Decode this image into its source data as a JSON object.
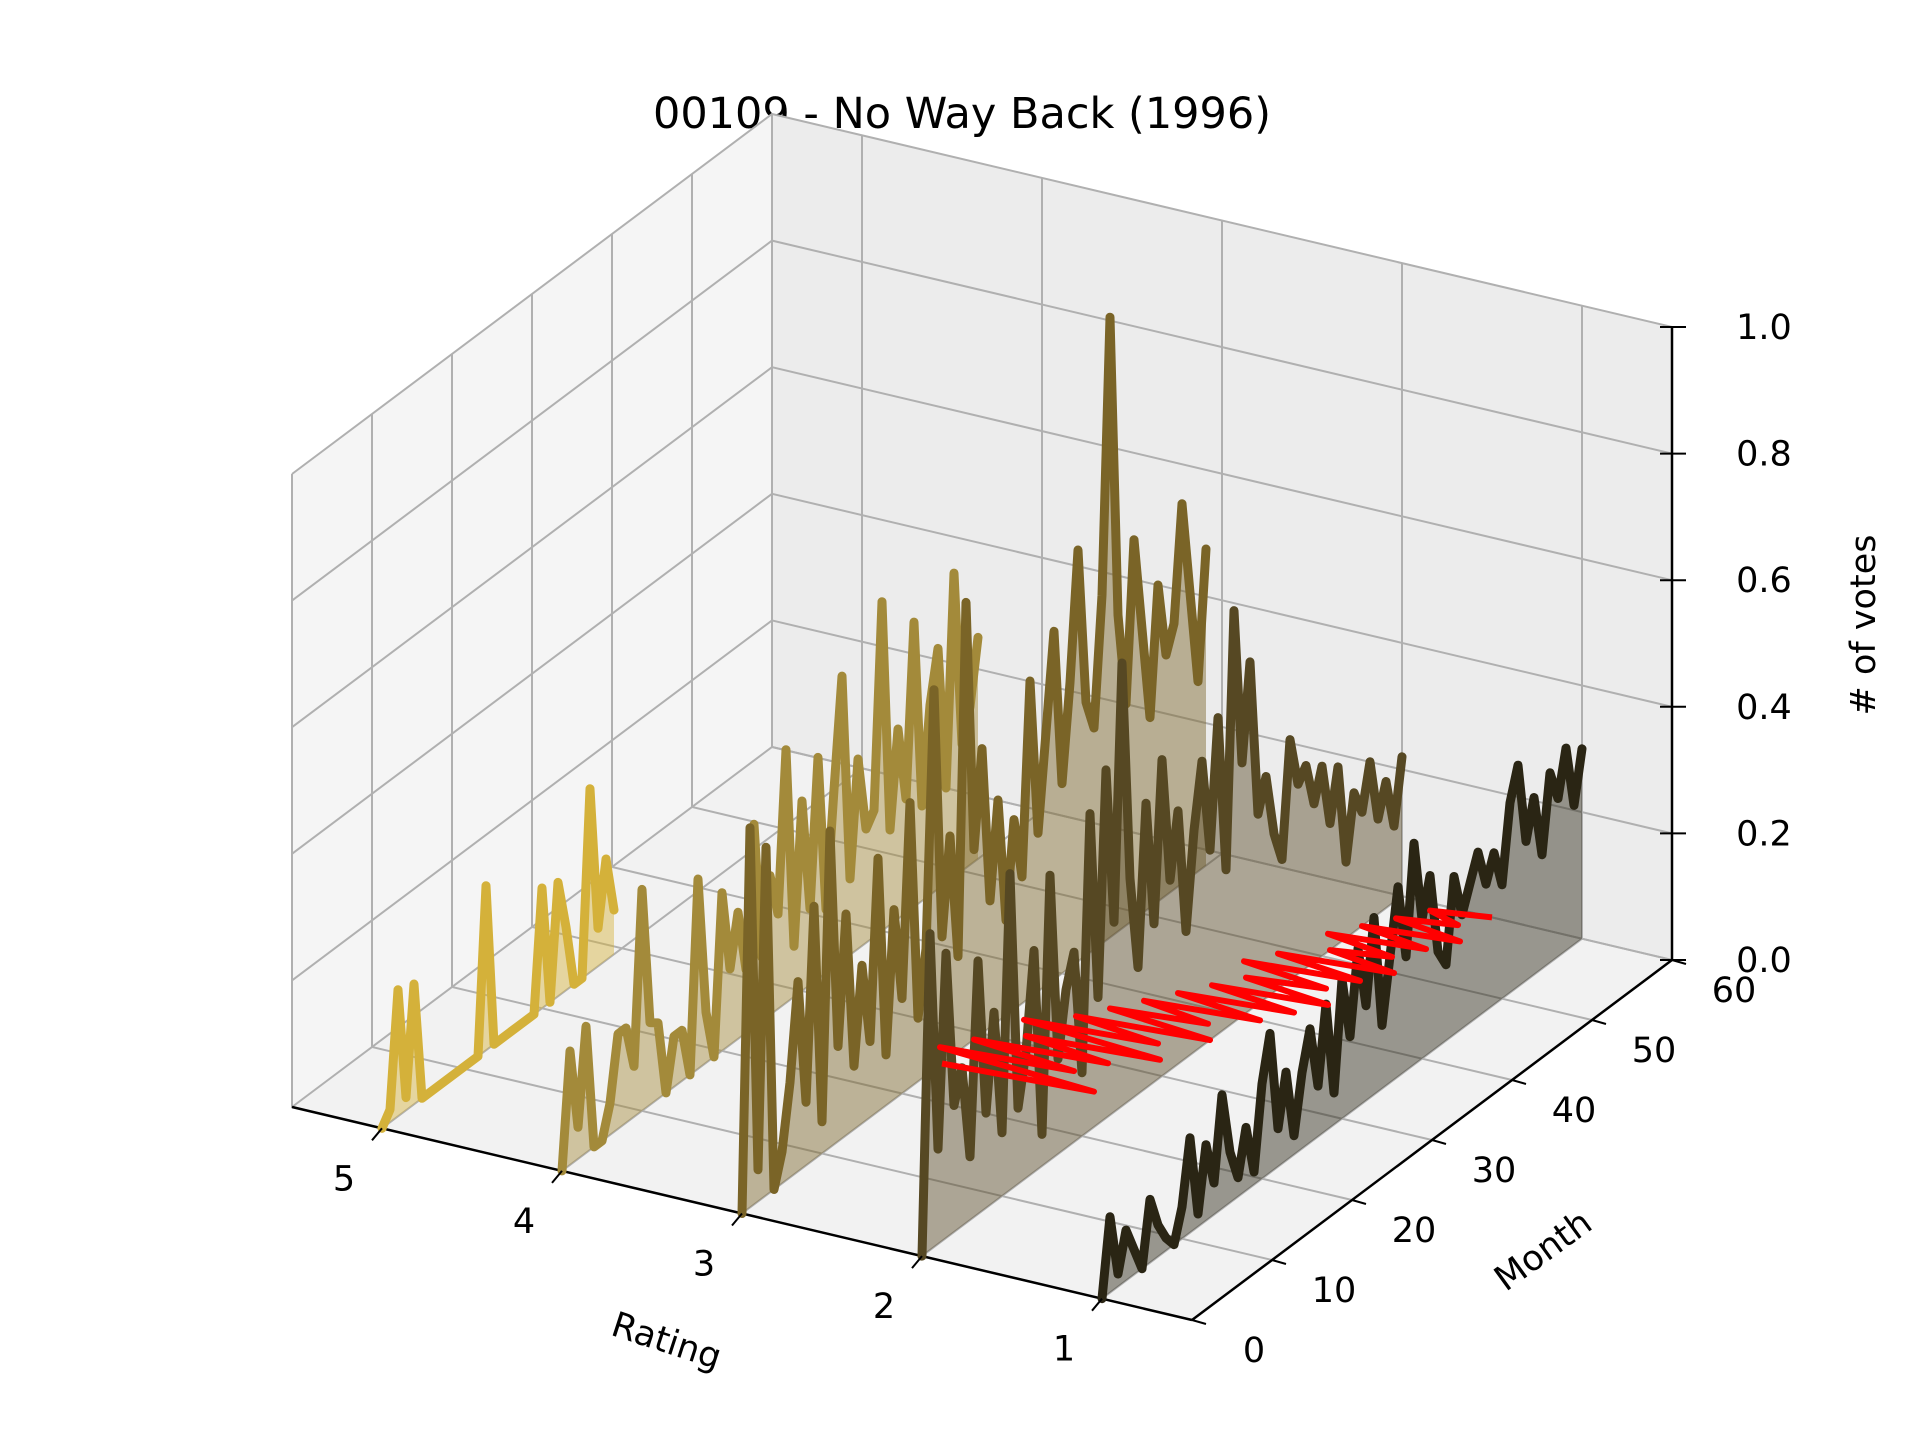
{
  "chart_data": {
    "type": "line",
    "projection": "3d",
    "title": "00109 - No Way Back (1996)",
    "xlabel": "Rating",
    "ylabel": "Month",
    "zlabel": "# of votes",
    "xlim": [
      0.5,
      5.5
    ],
    "ylim": [
      0,
      60
    ],
    "zlim": [
      0,
      1
    ],
    "x_ticks": [
      "5",
      "4",
      "3",
      "2",
      "1"
    ],
    "y_ticks": [
      "0",
      "10",
      "20",
      "30",
      "40",
      "50",
      "60"
    ],
    "z_ticks": [
      "0.0",
      "0.2",
      "0.4",
      "0.6",
      "0.8",
      "1.0"
    ],
    "grid": true,
    "legend": "none",
    "series": [
      {
        "rating": 5,
        "color": "#d4b13a",
        "month_start": 0,
        "month_end": 29,
        "values": [
          0.0,
          0.02,
          0.2,
          0.02,
          0.19,
          0.0,
          0.0,
          0.0,
          0.0,
          0.0,
          0.0,
          0.0,
          0.0,
          0.26,
          0.0,
          0.0,
          0.0,
          0.0,
          0.0,
          0.0,
          0.19,
          0.0,
          0.18,
          0.1,
          0.0,
          0.0,
          0.29,
          0.06,
          0.16,
          0.07
        ]
      },
      {
        "rating": 4,
        "color": "#a38a3a",
        "month_start": 0,
        "month_end": 52,
        "values": [
          0.0,
          0.18,
          0.05,
          0.2,
          0.0,
          0.0,
          0.05,
          0.15,
          0.15,
          0.08,
          0.35,
          0.13,
          0.12,
          0.0,
          0.08,
          0.08,
          0.0,
          0.3,
          0.08,
          0.0,
          0.25,
          0.12,
          0.2,
          0.1,
          0.32,
          0.1,
          0.22,
          0.15,
          0.4,
          0.08,
          0.3,
          0.12,
          0.35,
          0.1,
          0.28,
          0.45,
          0.12,
          0.3,
          0.18,
          0.2,
          0.52,
          0.15,
          0.3,
          0.18,
          0.45,
          0.15,
          0.3,
          0.38,
          0.15,
          0.48,
          0.2,
          0.25,
          0.35
        ]
      },
      {
        "rating": 3,
        "color": "#7a6427",
        "month_start": 0,
        "month_end": 58,
        "values": [
          0.0,
          0.6,
          0.05,
          0.55,
          0.0,
          0.05,
          0.15,
          0.3,
          0.1,
          0.4,
          0.05,
          0.5,
          0.15,
          0.35,
          0.1,
          0.25,
          0.12,
          0.4,
          0.08,
          0.3,
          0.15,
          0.45,
          0.1,
          0.2,
          0.6,
          0.2,
          0.35,
          0.15,
          0.7,
          0.3,
          0.45,
          0.2,
          0.35,
          0.15,
          0.3,
          0.2,
          0.5,
          0.25,
          0.4,
          0.55,
          0.3,
          0.45,
          0.65,
          0.4,
          0.35,
          0.55,
          0.98,
          0.5,
          0.35,
          0.6,
          0.45,
          0.3,
          0.5,
          0.38,
          0.42,
          0.6,
          0.45,
          0.3,
          0.5
        ]
      },
      {
        "rating": 2,
        "color": "#564823",
        "month_start": 0,
        "month_end": 60,
        "values": [
          0.0,
          0.5,
          0.15,
          0.45,
          0.2,
          0.25,
          0.1,
          0.4,
          0.15,
          0.3,
          0.1,
          0.5,
          0.12,
          0.2,
          0.35,
          0.05,
          0.45,
          0.15,
          0.25,
          0.3,
          0.1,
          0.5,
          0.2,
          0.55,
          0.3,
          0.7,
          0.35,
          0.2,
          0.45,
          0.25,
          0.5,
          0.3,
          0.4,
          0.2,
          0.35,
          0.45,
          0.3,
          0.5,
          0.25,
          0.65,
          0.4,
          0.55,
          0.3,
          0.35,
          0.25,
          0.2,
          0.38,
          0.3,
          0.32,
          0.25,
          0.3,
          0.2,
          0.28,
          0.12,
          0.22,
          0.18,
          0.25,
          0.15,
          0.2,
          0.12,
          0.22
        ]
      },
      {
        "rating": 1,
        "color": "#2a2514",
        "month_start": 0,
        "month_end": 60,
        "values": [
          0.0,
          0.12,
          0.02,
          0.08,
          0.04,
          0.0,
          0.1,
          0.05,
          0.02,
          0.0,
          0.05,
          0.15,
          0.02,
          0.12,
          0.05,
          0.18,
          0.08,
          0.03,
          0.1,
          0.02,
          0.15,
          0.22,
          0.06,
          0.14,
          0.03,
          0.12,
          0.18,
          0.08,
          0.2,
          0.05,
          0.22,
          0.12,
          0.25,
          0.15,
          0.28,
          0.1,
          0.2,
          0.3,
          0.18,
          0.35,
          0.22,
          0.28,
          0.15,
          0.12,
          0.25,
          0.18,
          0.22,
          0.26,
          0.2,
          0.24,
          0.18,
          0.3,
          0.35,
          0.22,
          0.28,
          0.18,
          0.3,
          0.25,
          0.32,
          0.22,
          0.3
        ]
      }
    ],
    "floor_trace": {
      "color": "#ff0000",
      "points": [
        [
          3.0,
          25
        ],
        [
          2.2,
          26
        ],
        [
          3.1,
          27
        ],
        [
          2.4,
          28
        ],
        [
          3.0,
          29
        ],
        [
          2.3,
          30
        ],
        [
          2.8,
          31
        ],
        [
          2.1,
          32
        ],
        [
          2.9,
          33
        ],
        [
          2.2,
          34
        ],
        [
          2.7,
          35
        ],
        [
          2.0,
          36
        ],
        [
          2.6,
          37
        ],
        [
          2.1,
          38
        ],
        [
          2.5,
          39
        ],
        [
          1.9,
          40
        ],
        [
          2.4,
          41
        ],
        [
          1.8,
          42
        ],
        [
          2.3,
          43
        ],
        [
          1.7,
          44
        ],
        [
          2.2,
          45
        ],
        [
          1.8,
          46
        ],
        [
          2.3,
          47
        ],
        [
          1.7,
          48
        ],
        [
          2.2,
          49
        ],
        [
          1.6,
          50
        ],
        [
          2.0,
          51
        ],
        [
          1.7,
          52
        ],
        [
          2.1,
          53
        ],
        [
          1.6,
          54
        ],
        [
          2.0,
          55
        ],
        [
          1.5,
          56
        ],
        [
          1.9,
          57
        ],
        [
          1.6,
          58
        ],
        [
          1.8,
          59
        ],
        [
          1.5,
          60
        ]
      ]
    }
  }
}
